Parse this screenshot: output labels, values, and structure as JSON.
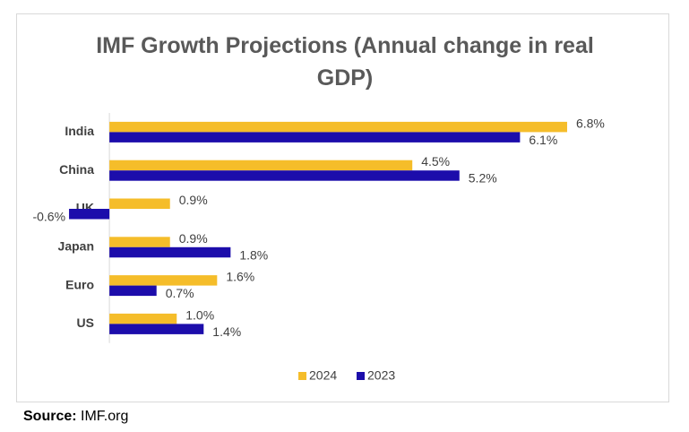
{
  "chart_data": {
    "type": "hbar",
    "title": "IMF Growth Projections (Annual change in real GDP)",
    "categories": [
      "India",
      "China",
      "UK",
      "Japan",
      "Euro",
      "US"
    ],
    "series": [
      {
        "name": "2024",
        "color": "#f5bd2a",
        "values": [
          6.8,
          4.5,
          0.9,
          0.9,
          1.6,
          1.0
        ],
        "value_labels": [
          "6.8%",
          "4.5%",
          "0.9%",
          "0.9%",
          "1.6%",
          "1.0%"
        ]
      },
      {
        "name": "2023",
        "color": "#1c0dab",
        "values": [
          6.1,
          5.2,
          -0.6,
          1.8,
          0.7,
          1.4
        ],
        "value_labels": [
          "6.1%",
          "5.2%",
          "-0.6%",
          "1.8%",
          "0.7%",
          "1.4%"
        ]
      }
    ],
    "xlim": [
      -1,
      7
    ],
    "legend": "bottom"
  },
  "source": {
    "label": "Source:",
    "text": "IMF.org"
  }
}
